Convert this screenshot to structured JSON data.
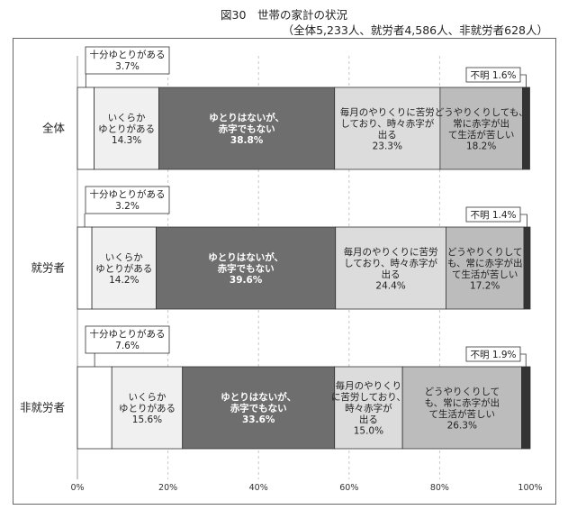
{
  "title": "図30　世帯の家計の状況",
  "subtitle": "（全体5,233人、就労者4,586人、非就労者628人）",
  "colors": {
    "s0": "#ffffff",
    "s1": "#f0f0f0",
    "s2": "#6e6e6e",
    "s3": "#dcdcdc",
    "s4": "#bcbcbc",
    "s5": "#333333"
  },
  "chart_data": {
    "type": "bar",
    "orientation": "horizontal-stacked-100",
    "categories": [
      "全体",
      "就労者",
      "非就労者"
    ],
    "series": [
      {
        "name": "十分ゆとりがある",
        "values": [
          3.7,
          3.2,
          7.6
        ]
      },
      {
        "name": "いくらかゆとりがある",
        "values": [
          14.3,
          14.2,
          15.6
        ]
      },
      {
        "name": "ゆとりはないが、赤字でもない",
        "values": [
          38.8,
          39.6,
          33.6
        ]
      },
      {
        "name": "毎月のやりくりに苦労しており、時々赤字が出る",
        "values": [
          23.3,
          24.4,
          15.0
        ]
      },
      {
        "name": "どうやりくりしても、常に赤字が出て生活が苦しい",
        "values": [
          18.2,
          17.2,
          26.3
        ]
      },
      {
        "name": "不明",
        "values": [
          1.6,
          1.4,
          1.9
        ]
      }
    ],
    "x_ticks": [
      "0%",
      "20%",
      "40%",
      "60%",
      "80%",
      "100%"
    ],
    "xlim": [
      0,
      100
    ],
    "grid": "vertical-dashed",
    "legend": "none"
  },
  "labels": {
    "callout_small": [
      "十分ゆとりがある",
      "3.7%",
      "十分ゆとりがある",
      "3.2%",
      "十分ゆとりがある",
      "7.6%"
    ],
    "callout_unknown": [
      "不明 1.6%",
      "不明 1.4%",
      "不明 1.9%"
    ],
    "seg": [
      [
        [
          "いくらか",
          "ゆとりがある",
          "14.3%"
        ],
        [
          "ゆとりはないが、",
          "赤字でもない",
          "38.8%"
        ],
        [
          "毎月のやりくりに苦労",
          "しており、時々赤字が",
          "出る",
          "23.3%"
        ],
        [
          "どうやりくりしても、",
          "常に赤字が出",
          "て生活が苦しい",
          "18.2%"
        ]
      ],
      [
        [
          "いくらか",
          "ゆとりがある",
          "14.2%"
        ],
        [
          "ゆとりはないが、",
          "赤字でもない",
          "39.6%"
        ],
        [
          "毎月のやりくりに苦労",
          "しており、時々赤字が",
          "出る",
          "24.4%"
        ],
        [
          "どうやりくりして",
          "も、常に赤字が出",
          "て生活が苦しい",
          "17.2%"
        ]
      ],
      [
        [
          "いくらか",
          "ゆとりがある",
          "15.6%"
        ],
        [
          "ゆとりはないが、",
          "赤字でもない",
          "33.6%"
        ],
        [
          "毎月のやりくり",
          "に苦労しており、",
          "時々赤字が",
          "出る",
          "15.0%"
        ],
        [
          "どうやりくりして",
          "も、常に赤字が出",
          "て生活が苦しい",
          "26.3%"
        ]
      ]
    ]
  }
}
